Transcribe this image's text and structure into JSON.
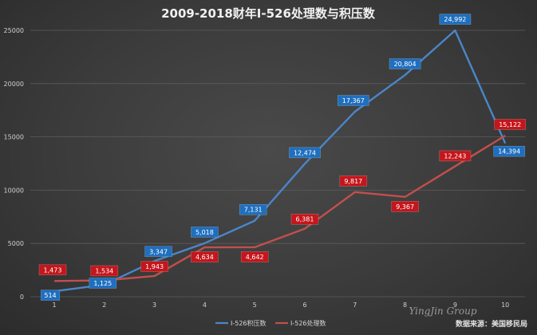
{
  "chart_data": {
    "type": "line",
    "title": "2009-2018财年I-526处理数与积压数",
    "categories": [
      "1",
      "2",
      "3",
      "4",
      "5",
      "6",
      "7",
      "8",
      "9",
      "10"
    ],
    "ylim": [
      0,
      25000
    ],
    "yticks": [
      "0",
      "5000",
      "10000",
      "15000",
      "20000",
      "25000"
    ],
    "grid": true,
    "legend_position": "bottom",
    "series": [
      {
        "name": "I-526积压数",
        "color": "#4a86c8",
        "label_bg": "#1f6fbf",
        "values": [
          514,
          1125,
          3347,
          5018,
          7131,
          12474,
          17367,
          20804,
          24992,
          14394
        ],
        "labels": [
          "514",
          "1,125",
          "3,347",
          "5,018",
          "7,131",
          "12,474",
          "17,367",
          "20,804",
          "24,992",
          "14,394"
        ]
      },
      {
        "name": "I-526处理数",
        "color": "#c0504d",
        "label_bg": "#c4161c",
        "values": [
          1473,
          1534,
          1943,
          4634,
          4642,
          6381,
          9817,
          9367,
          12243,
          15122
        ],
        "labels": [
          "1,473",
          "1,534",
          "1,943",
          "4,634",
          "4,642",
          "6,381",
          "9,817",
          "9,367",
          "12,243",
          "15,122"
        ]
      }
    ]
  },
  "watermark": "YingJin Group",
  "source_note": "数据来源：美国移民局"
}
